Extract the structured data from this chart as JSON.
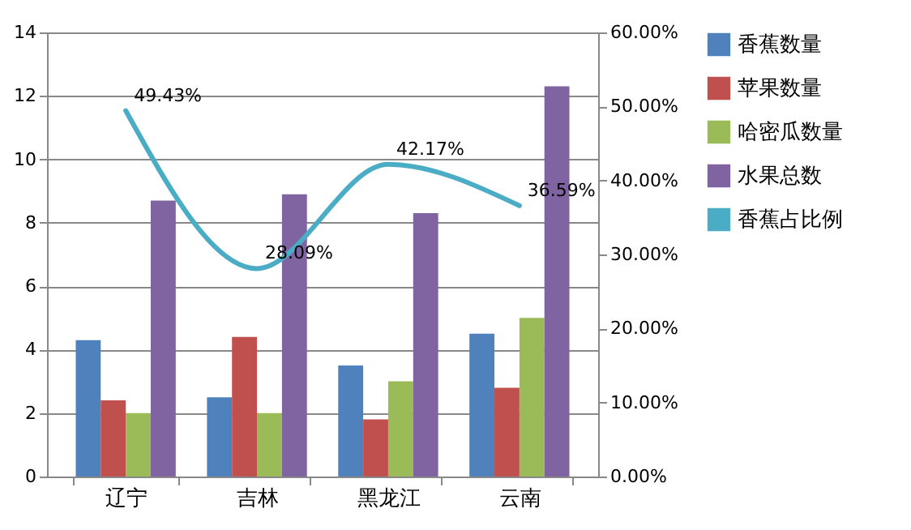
{
  "chart_data": {
    "type": "bar",
    "categories": [
      "辽宁",
      "吉林",
      "黑龙江",
      "云南"
    ],
    "series": [
      {
        "name": "香蕉数量",
        "color": "#4f81bd",
        "values": [
          4.3,
          2.5,
          3.5,
          4.5
        ]
      },
      {
        "name": "苹果数量",
        "color": "#c0504d",
        "values": [
          2.4,
          4.4,
          1.8,
          2.8
        ]
      },
      {
        "name": "哈密瓜数量",
        "color": "#9bbb59",
        "values": [
          2.0,
          2.0,
          3.0,
          5.0
        ]
      },
      {
        "name": "水果总数",
        "color": "#8064a2",
        "values": [
          8.7,
          8.9,
          8.3,
          12.3
        ]
      },
      {
        "name": "香蕉占比例",
        "type": "line",
        "axis": "y2",
        "color": "#4bacc6",
        "values": [
          49.43,
          28.09,
          42.17,
          36.59
        ],
        "value_labels": [
          "49.43%",
          "28.09%",
          "42.17%",
          "36.59%"
        ]
      }
    ],
    "ylim": [
      0,
      14
    ],
    "yticks": [
      0,
      2,
      4,
      6,
      8,
      10,
      12,
      14
    ],
    "y2lim": [
      0,
      60
    ],
    "y2ticks": [
      {
        "value": 0,
        "label": "0.00%"
      },
      {
        "value": 10,
        "label": "10.00%"
      },
      {
        "value": 20,
        "label": "20.00%"
      },
      {
        "value": 30,
        "label": "30.00%"
      },
      {
        "value": 40,
        "label": "40.00%"
      },
      {
        "value": 50,
        "label": "50.00%"
      },
      {
        "value": 60,
        "label": "60.00%"
      }
    ],
    "grid": "y",
    "legend": "right"
  }
}
